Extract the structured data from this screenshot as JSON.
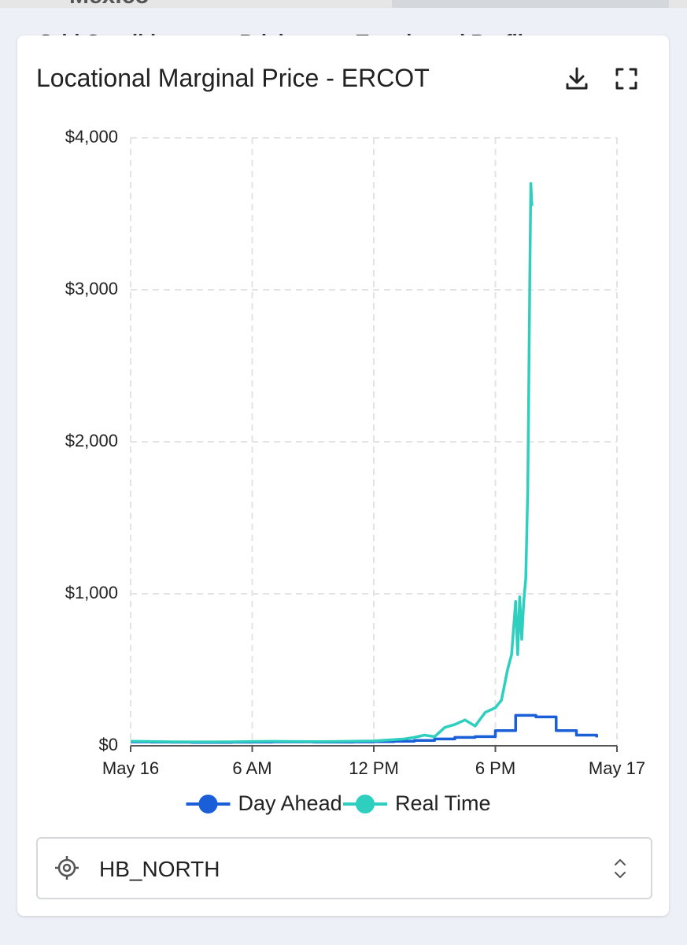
{
  "top": {
    "map_label": "Mexico",
    "tabs": [
      "Grid Conditions",
      "Pricing",
      "Trends and Profile"
    ]
  },
  "chart_data": {
    "type": "line",
    "title": "Locational Marginal Price - ERCOT",
    "xlim": [
      0,
      24
    ],
    "xticks": [
      {
        "value": 0,
        "label": "May 16"
      },
      {
        "value": 6,
        "label": "6 AM"
      },
      {
        "value": 12,
        "label": "12 PM"
      },
      {
        "value": 18,
        "label": "6 PM"
      },
      {
        "value": 24,
        "label": "May 17"
      }
    ],
    "ylim": [
      0,
      4000
    ],
    "yticks": [
      {
        "value": 0,
        "label": "$0"
      },
      {
        "value": 1000,
        "label": "$1,000"
      },
      {
        "value": 2000,
        "label": "$2,000"
      },
      {
        "value": 3000,
        "label": "$3,000"
      },
      {
        "value": 4000,
        "label": "$4,000"
      }
    ],
    "grid": true,
    "legend": "bottom",
    "series": [
      {
        "name": "Day Ahead",
        "color": "#1a5fd8",
        "step": true,
        "x": [
          0,
          1,
          2,
          3,
          4,
          5,
          6,
          7,
          8,
          9,
          10,
          11,
          12,
          13,
          14,
          15,
          16,
          17,
          18,
          19,
          20,
          21,
          22,
          23
        ],
        "values": [
          25,
          24,
          23,
          22,
          22,
          23,
          24,
          25,
          25,
          24,
          24,
          25,
          27,
          30,
          35,
          45,
          55,
          60,
          100,
          200,
          190,
          100,
          70,
          55
        ]
      },
      {
        "name": "Real Time",
        "color": "#2ecfbf",
        "x": [
          0,
          1,
          2,
          3,
          4,
          5,
          6,
          7,
          8,
          9,
          10,
          11,
          12,
          13,
          13.5,
          14,
          14.5,
          15,
          15.5,
          16,
          16.5,
          17,
          17.5,
          18,
          18.3,
          18.6,
          18.8,
          19,
          19.1,
          19.2,
          19.3,
          19.4,
          19.5,
          19.6,
          19.65,
          19.7,
          19.75,
          19.8
        ],
        "values": [
          30,
          28,
          26,
          25,
          25,
          26,
          28,
          29,
          28,
          27,
          28,
          30,
          32,
          40,
          45,
          55,
          70,
          60,
          120,
          140,
          170,
          130,
          220,
          250,
          300,
          500,
          600,
          950,
          600,
          980,
          700,
          950,
          1100,
          1700,
          2400,
          3100,
          3700,
          3550
        ]
      }
    ]
  },
  "selector": {
    "value": "HB_NORTH"
  }
}
